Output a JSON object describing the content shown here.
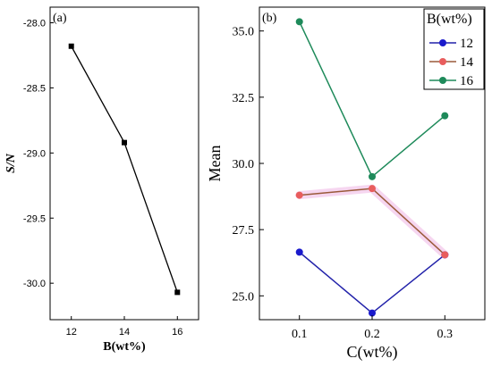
{
  "chart_data": [
    {
      "type": "line",
      "panel_label": "(a)",
      "xlabel": "B(wt%)",
      "ylabel": "S/N",
      "x": [
        12,
        14,
        16
      ],
      "xticks": [
        "12",
        "14",
        "16"
      ],
      "xlim": [
        11.2,
        16.8
      ],
      "ylim": [
        -30.28,
        -27.88
      ],
      "yticks": [
        "-28.0",
        "-28.5",
        "-29.0",
        "-29.5",
        "-30.0"
      ],
      "ytick_values": [
        -28.0,
        -28.5,
        -29.0,
        -29.5,
        -30.0
      ],
      "series": [
        {
          "values": [
            -28.18,
            -28.92,
            -30.07
          ],
          "color": "#000000"
        }
      ]
    },
    {
      "type": "line",
      "panel_label": "(b)",
      "xlabel": "C(wt%)",
      "ylabel": "Mean",
      "x": [
        0.1,
        0.2,
        0.3
      ],
      "xticks": [
        "0.1",
        "0.2",
        "0.3"
      ],
      "xlim": [
        0.045,
        0.355
      ],
      "ylim": [
        24.1,
        35.9
      ],
      "yticks": [
        "25.0",
        "27.5",
        "30.0",
        "32.5",
        "35.0"
      ],
      "ytick_values": [
        25.0,
        27.5,
        30.0,
        32.5,
        35.0
      ],
      "legend_title": "B(wt%)",
      "legend_position": "top-right",
      "series": [
        {
          "name": "12",
          "values": [
            26.65,
            24.35,
            26.55
          ],
          "color": "#2222aa",
          "marker": "#1a1acc"
        },
        {
          "name": "14",
          "values": [
            28.8,
            29.05,
            26.55
          ],
          "color": "#9a5a3a",
          "marker": "#e85d5d"
        },
        {
          "name": "16",
          "values": [
            35.35,
            29.5,
            31.8
          ],
          "color": "#1e8a5a",
          "marker": "#1e8a5a"
        }
      ]
    }
  ]
}
